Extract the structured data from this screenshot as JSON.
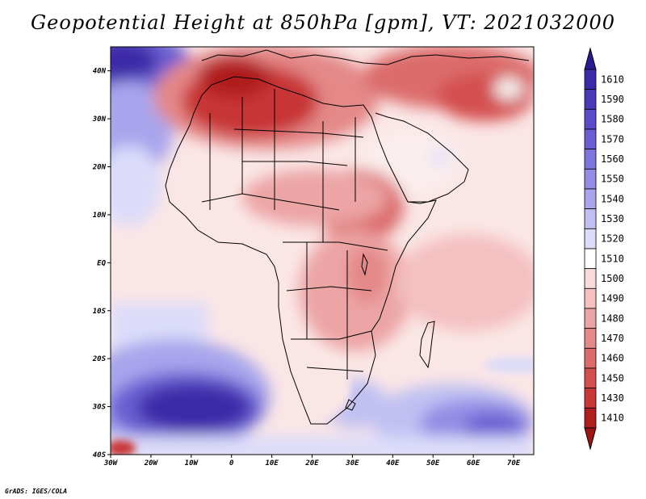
{
  "title": "Geopotential Height at 850hPa [gpm], VT: 2021032000",
  "credit": "GrADS: IGES/COLA",
  "map": {
    "lon_range": [
      -30,
      75
    ],
    "lat_range": [
      -40,
      45
    ],
    "lat_ticks": [
      {
        "lat": 40,
        "label": "40N"
      },
      {
        "lat": 30,
        "label": "30N"
      },
      {
        "lat": 20,
        "label": "20N"
      },
      {
        "lat": 10,
        "label": "10N"
      },
      {
        "lat": 0,
        "label": "EQ"
      },
      {
        "lat": -10,
        "label": "10S"
      },
      {
        "lat": -20,
        "label": "20S"
      },
      {
        "lat": -30,
        "label": "30S"
      },
      {
        "lat": -40,
        "label": "40S"
      }
    ],
    "lon_ticks": [
      {
        "lon": -30,
        "label": "30W"
      },
      {
        "lon": -20,
        "label": "20W"
      },
      {
        "lon": -10,
        "label": "10W"
      },
      {
        "lon": 0,
        "label": "0"
      },
      {
        "lon": 10,
        "label": "10E"
      },
      {
        "lon": 20,
        "label": "20E"
      },
      {
        "lon": 30,
        "label": "30E"
      },
      {
        "lon": 40,
        "label": "40E"
      },
      {
        "lon": 50,
        "label": "50E"
      },
      {
        "lon": 60,
        "label": "60E"
      },
      {
        "lon": 70,
        "label": "70E"
      }
    ]
  },
  "colorbar": {
    "levels": [
      {
        "label": "1610",
        "color": "#3c2ba8"
      },
      {
        "label": "1590",
        "color": "#4a3ab8"
      },
      {
        "label": "1580",
        "color": "#5a4bc8"
      },
      {
        "label": "1570",
        "color": "#6a5ed2"
      },
      {
        "label": "1560",
        "color": "#7d74dc"
      },
      {
        "label": "1550",
        "color": "#928ce4"
      },
      {
        "label": "1540",
        "color": "#a8a5ec"
      },
      {
        "label": "1530",
        "color": "#c0c0f3"
      },
      {
        "label": "1520",
        "color": "#dcdcfa"
      },
      {
        "label": "1510",
        "color": "#ffffff"
      },
      {
        "label": "1500",
        "color": "#f8dada"
      },
      {
        "label": "1490",
        "color": "#f4c0c0"
      },
      {
        "label": "1480",
        "color": "#eca4a4"
      },
      {
        "label": "1470",
        "color": "#e48888"
      },
      {
        "label": "1460",
        "color": "#dc6c6c"
      },
      {
        "label": "1450",
        "color": "#d45050"
      },
      {
        "label": "1430",
        "color": "#c83636"
      },
      {
        "label": "1410",
        "color": "#b01e1e"
      }
    ],
    "top_arrow_color": "#2a1a98",
    "bottom_arrow_color": "#a01414"
  }
}
